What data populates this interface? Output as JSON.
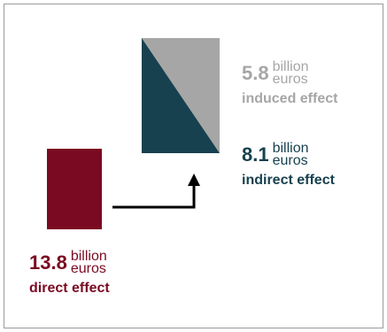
{
  "colors": {
    "direct": "#7a0a22",
    "indirect": "#17414f",
    "induced": "#a6a6a6",
    "arrow": "#000000",
    "frame": "#9a9a9a"
  },
  "direct": {
    "value": "13.8",
    "unit_line1": "billion",
    "unit_line2": "euros",
    "caption": "direct effect"
  },
  "indirect": {
    "value": "8.1",
    "unit_line1": "billion",
    "unit_line2": "euros",
    "caption": "indirect effect"
  },
  "induced": {
    "value": "5.8",
    "unit_line1": "billion",
    "unit_line2": "euros",
    "caption": "induced effect"
  }
}
